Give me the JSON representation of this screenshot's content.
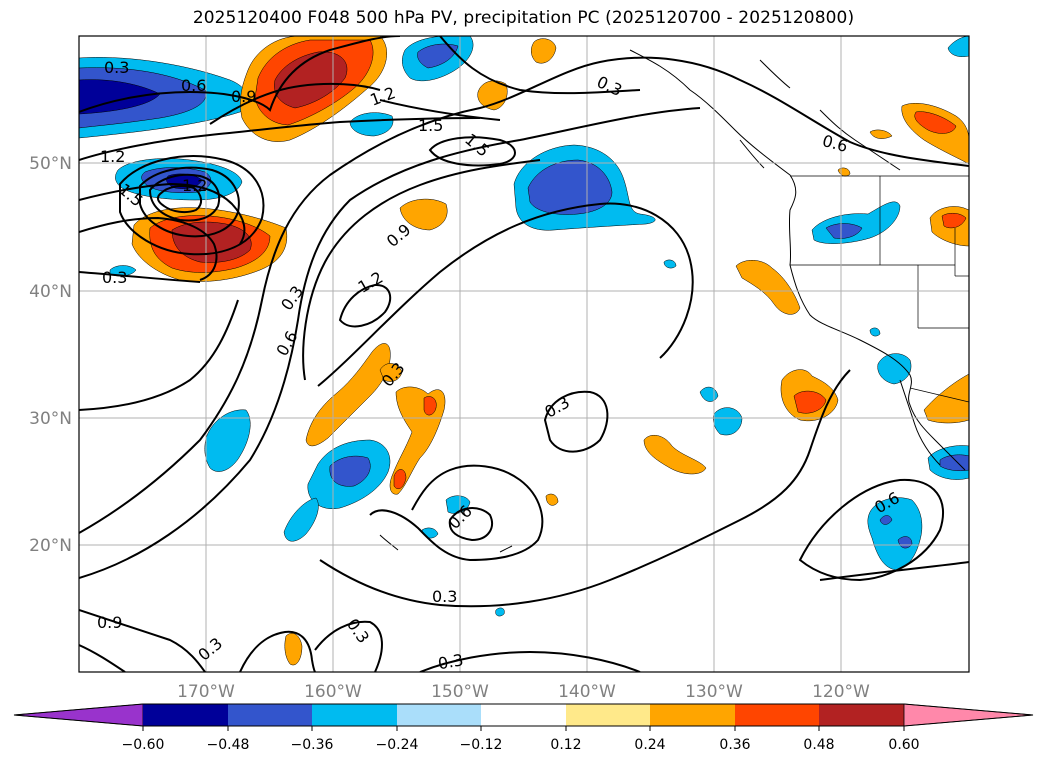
{
  "title": "2025120400 F048 500 hPa PV, precipitation PC (2025120700 - 2025120800)",
  "latitude_labels": [
    "50°N",
    "40°N",
    "30°N",
    "20°N"
  ],
  "longitude_labels": [
    "170°W",
    "160°W",
    "150°W",
    "140°W",
    "130°W",
    "120°W"
  ],
  "contour_labels": [
    "0.3",
    "0.6",
    "0.9",
    "1.2",
    "1.5",
    "0.3",
    "1.2",
    "1.2",
    "1.5",
    "1.5",
    "0.9",
    "0.3",
    "1.2",
    "0.3",
    "0.6",
    "0.3",
    "0.3",
    "0.6",
    "0.3",
    "0.6",
    "0.9",
    "0.3",
    "0.3",
    "0.3",
    "0.6"
  ],
  "colorbar": {
    "tick_labels": [
      "−0.60",
      "−0.48",
      "−0.36",
      "−0.24",
      "−0.12",
      "0.12",
      "0.24",
      "0.36",
      "0.48",
      "0.60"
    ],
    "colors": [
      "#9933cc",
      "#000099",
      "#3355cc",
      "#00bbf0",
      "#aadefa",
      "#ffffff",
      "#ffe98a",
      "#ffa500",
      "#ff4500",
      "#b22222",
      "#ff88aa"
    ]
  },
  "fill_colors": {
    "neg_strong": "#000099",
    "neg_mid": "#3355cc",
    "neg_weak": "#00bbf0",
    "pos_weak": "#ffa500",
    "pos_mid": "#ff4500",
    "pos_strong": "#b22222"
  }
}
